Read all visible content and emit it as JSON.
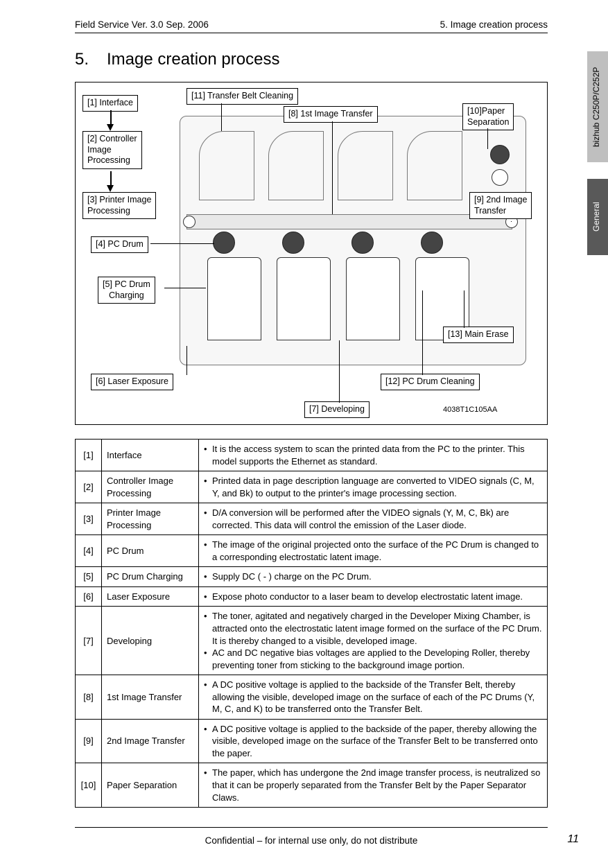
{
  "header": {
    "left": "Field Service Ver. 3.0 Sep. 2006",
    "right": "5. Image creation process"
  },
  "title": {
    "num": "5.",
    "text": "Image creation process"
  },
  "sideTabs": {
    "model": "bizhub C250P/C252P",
    "section": "General"
  },
  "diagram": {
    "labels": {
      "l1": "[1] Interface",
      "l2": "[2] Controller\nImage\nProcessing",
      "l3": "[3] Printer Image\nProcessing",
      "l4": "[4] PC Drum",
      "l5": "[5] PC Drum\nCharging",
      "l6": "[6] Laser Exposure",
      "l7": "[7] Developing",
      "l8": "[8] 1st Image Transfer",
      "l9": "[9] 2nd Image\nTransfer",
      "l10": "[10]Paper\nSeparation",
      "l11": "[11] Transfer Belt Cleaning",
      "l12": "[12] PC Drum Cleaning",
      "l13": "[13] Main Erase"
    },
    "code": "4038T1C105AA"
  },
  "table": [
    {
      "idx": "[1]",
      "name": "Interface",
      "desc": [
        "It is the access system to scan the printed data from the PC to the printer. This model supports the Ethernet as standard."
      ]
    },
    {
      "idx": "[2]",
      "name": "Controller Image Processing",
      "desc": [
        "Printed data in page description language are converted to VIDEO signals (C, M, Y, and Bk) to output to the printer's image processing section."
      ]
    },
    {
      "idx": "[3]",
      "name": "Printer Image Processing",
      "desc": [
        "D/A conversion will be performed after the VIDEO signals (Y, M, C, Bk) are corrected. This data will control the emission of the Laser diode."
      ]
    },
    {
      "idx": "[4]",
      "name": "PC Drum",
      "desc": [
        "The image of the original projected onto the surface of the PC Drum is changed to a corresponding electrostatic latent image."
      ]
    },
    {
      "idx": "[5]",
      "name": "PC Drum Charging",
      "desc": [
        "Supply DC ( - ) charge on the PC Drum."
      ]
    },
    {
      "idx": "[6]",
      "name": "Laser Exposure",
      "desc": [
        "Expose photo conductor to a laser beam to develop electrostatic latent image."
      ]
    },
    {
      "idx": "[7]",
      "name": "Developing",
      "desc": [
        "The toner, agitated and negatively charged in the Developer Mixing Chamber, is attracted onto the electrostatic latent image formed on the surface of the PC Drum. It is thereby changed to a visible, developed image.",
        "AC and DC negative bias voltages are applied to the Developing Roller, thereby preventing toner from sticking to the background image portion."
      ]
    },
    {
      "idx": "[8]",
      "name": "1st Image Transfer",
      "desc": [
        "A DC positive voltage is applied to the backside of the Transfer Belt, thereby allowing the visible, developed image on the surface of each of the PC Drums (Y, M, C, and K) to be transferred onto the Transfer Belt."
      ]
    },
    {
      "idx": "[9]",
      "name": "2nd Image Transfer",
      "desc": [
        "A DC positive voltage is applied to the backside of the paper, thereby allowing the visible, developed image on the surface of the Transfer Belt to be transferred onto the paper."
      ]
    },
    {
      "idx": "[10]",
      "name": "Paper Separation",
      "desc": [
        "The paper, which has undergone the 2nd image transfer process, is neutralized so that it can be properly separated from the Transfer Belt by the Paper Separator Claws."
      ]
    }
  ],
  "footer": {
    "text": "Confidential – for internal use only, do not distribute",
    "page": "11"
  }
}
